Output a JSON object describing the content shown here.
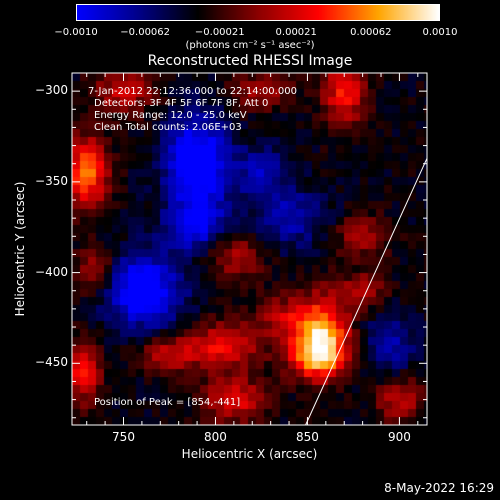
{
  "colorbar": {
    "colors": [
      "#0000ff",
      "#00008b",
      "#000000",
      "#8b0000",
      "#ff0000",
      "#ffa500",
      "#ffffff"
    ],
    "ticks": [
      {
        "value": -0.001,
        "label": "−0.0010"
      },
      {
        "value": -0.00062,
        "label": "−0.00062"
      },
      {
        "value": -0.00021,
        "label": "−0.00021"
      },
      {
        "value": 0.00021,
        "label": "0.00021"
      },
      {
        "value": 0.00062,
        "label": "0.00062"
      },
      {
        "value": 0.001,
        "label": "0.0010"
      }
    ],
    "units": "(photons cm⁻² s⁻¹ asec⁻²)"
  },
  "chart_data": {
    "type": "heatmap",
    "title": "Reconstructed RHESSI Image",
    "xlabel": "Heliocentric X (arcsec)",
    "ylabel": "Heliocentric Y (arcsec)",
    "xlim": [
      722,
      915
    ],
    "ylim": [
      -484,
      -290
    ],
    "zlim": [
      -0.001,
      0.001
    ],
    "xticks": [
      750,
      800,
      850,
      900
    ],
    "xtick_labels": [
      "750",
      "800",
      "850",
      "900"
    ],
    "yticks": [
      -300,
      -350,
      -400,
      -450
    ],
    "ytick_labels": [
      "−300",
      "−350",
      "−400",
      "−450"
    ],
    "peak": {
      "x": 854,
      "y": -441
    },
    "limb_points": [
      [
        849,
        -484
      ],
      [
        915,
        -337
      ]
    ],
    "sources": [
      {
        "x": 855,
        "y": -445,
        "value": 0.00105,
        "sx": 11,
        "sy": 10
      },
      {
        "x": 860,
        "y": -430,
        "value": 0.0007,
        "sx": 9,
        "sy": 14
      },
      {
        "x": 840,
        "y": -425,
        "value": 0.0005,
        "sx": 12,
        "sy": 9
      },
      {
        "x": 730,
        "y": -345,
        "value": 0.0009,
        "sx": 8,
        "sy": 14
      },
      {
        "x": 735,
        "y": -400,
        "value": 0.0005,
        "sx": 8,
        "sy": 10
      },
      {
        "x": 728,
        "y": -455,
        "value": 0.00065,
        "sx": 7,
        "sy": 12
      },
      {
        "x": 805,
        "y": -440,
        "value": 0.00065,
        "sx": 13,
        "sy": 9
      },
      {
        "x": 775,
        "y": -445,
        "value": 0.0005,
        "sx": 11,
        "sy": 7
      },
      {
        "x": 810,
        "y": -470,
        "value": 0.0006,
        "sx": 12,
        "sy": 9
      },
      {
        "x": 870,
        "y": -300,
        "value": 0.0007,
        "sx": 8,
        "sy": 14
      },
      {
        "x": 880,
        "y": -380,
        "value": 0.00045,
        "sx": 10,
        "sy": 8
      },
      {
        "x": 880,
        "y": -410,
        "value": 0.00045,
        "sx": 9,
        "sy": 7
      },
      {
        "x": 750,
        "y": -300,
        "value": 0.0005,
        "sx": 12,
        "sy": 9
      },
      {
        "x": 810,
        "y": -390,
        "value": 0.00045,
        "sx": 12,
        "sy": 10
      },
      {
        "x": 900,
        "y": -470,
        "value": 0.0005,
        "sx": 9,
        "sy": 9
      },
      {
        "x": 825,
        "y": -300,
        "value": 0.0004,
        "sx": 12,
        "sy": 7
      },
      {
        "x": 790,
        "y": -340,
        "value": -0.0009,
        "sx": 12,
        "sy": 18
      },
      {
        "x": 760,
        "y": -410,
        "value": -0.00085,
        "sx": 15,
        "sy": 14
      },
      {
        "x": 790,
        "y": -375,
        "value": -0.0006,
        "sx": 12,
        "sy": 10
      },
      {
        "x": 840,
        "y": -370,
        "value": -0.0004,
        "sx": 14,
        "sy": 12
      },
      {
        "x": 895,
        "y": -440,
        "value": -0.0004,
        "sx": 10,
        "sy": 12
      },
      {
        "x": 825,
        "y": -345,
        "value": -0.0004,
        "sx": 10,
        "sy": 10
      }
    ],
    "annotations": {
      "time": "7-Jan-2012 22:12:36.000 to 22:14:00.000",
      "detectors": "Detectors: 3F 4F 5F 6F 7F 8F, Att 0",
      "energy": "Energy Range: 12.0 - 25.0 keV",
      "clean": "Clean    Total counts: 2.06E+03",
      "peak_label": "Position of Peak = [854,-441]"
    }
  },
  "timestamp": "8-May-2022 16:29"
}
